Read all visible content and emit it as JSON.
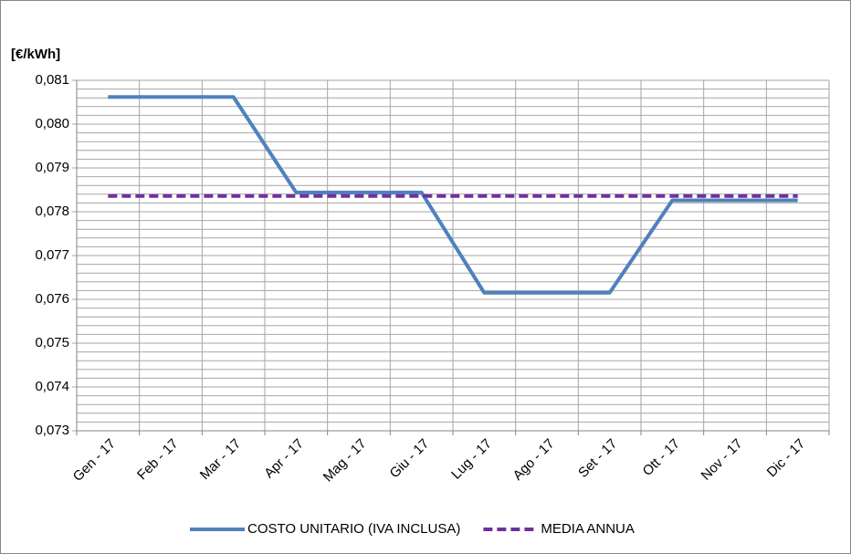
{
  "chart_data": {
    "type": "line",
    "title": "[€/kWh]",
    "categories": [
      "Gen - 17",
      "Feb - 17",
      "Mar - 17",
      "Apr - 17",
      "Mag - 17",
      "Giu - 17",
      "Lug - 17",
      "Ago - 17",
      "Set - 17",
      "Ott - 17",
      "Nov - 17",
      "Dic - 17"
    ],
    "series": [
      {
        "name": "COSTO UNITARIO (IVA INCLUSA)",
        "color": "#4f81bd",
        "dash": false,
        "values": [
          0.08062,
          0.08062,
          0.08062,
          0.07844,
          0.07844,
          0.07844,
          0.07615,
          0.07615,
          0.07615,
          0.07826,
          0.07826,
          0.07826
        ]
      },
      {
        "name": "MEDIA ANNUA",
        "color": "#7030a0",
        "dash": true,
        "values": [
          0.07836,
          0.07836,
          0.07836,
          0.07836,
          0.07836,
          0.07836,
          0.07836,
          0.07836,
          0.07836,
          0.07836,
          0.07836,
          0.07836
        ]
      }
    ],
    "ylim": [
      0.073,
      0.081
    ],
    "yticks": [
      {
        "value": 0.073,
        "label": "0,073"
      },
      {
        "value": 0.074,
        "label": "0,074"
      },
      {
        "value": 0.075,
        "label": "0,075"
      },
      {
        "value": 0.076,
        "label": "0,076"
      },
      {
        "value": 0.077,
        "label": "0,077"
      },
      {
        "value": 0.078,
        "label": "0,078"
      },
      {
        "value": 0.079,
        "label": "0,079"
      },
      {
        "value": 0.08,
        "label": "0,080"
      },
      {
        "value": 0.081,
        "label": "0,081"
      }
    ],
    "minor_grid_divisions": 5,
    "grid": true,
    "legend": "bottom"
  }
}
